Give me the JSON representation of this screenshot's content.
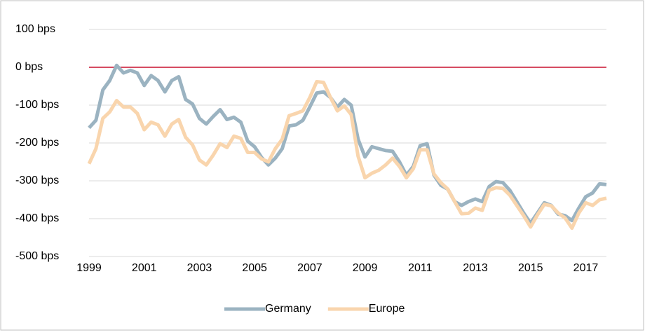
{
  "chart_data": {
    "type": "line",
    "x": [
      1999,
      1999.25,
      1999.5,
      1999.75,
      2000,
      2000.25,
      2000.5,
      2000.75,
      2001,
      2001.25,
      2001.5,
      2001.75,
      2002,
      2002.25,
      2002.5,
      2002.75,
      2003,
      2003.25,
      2003.5,
      2003.75,
      2004,
      2004.25,
      2004.5,
      2004.75,
      2005,
      2005.25,
      2005.5,
      2005.75,
      2006,
      2006.25,
      2006.5,
      2006.75,
      2007,
      2007.25,
      2007.5,
      2007.75,
      2008,
      2008.25,
      2008.5,
      2008.75,
      2009,
      2009.25,
      2009.5,
      2009.75,
      2010,
      2010.25,
      2010.5,
      2010.75,
      2011,
      2011.25,
      2011.5,
      2011.75,
      2012,
      2012.25,
      2012.5,
      2012.75,
      2013,
      2013.25,
      2013.5,
      2013.75,
      2014,
      2014.25,
      2014.5,
      2014.75,
      2015,
      2015.25,
      2015.5,
      2015.75,
      2016,
      2016.25,
      2016.5,
      2016.75,
      2017,
      2017.25,
      2017.5,
      2017.75
    ],
    "series": [
      {
        "name": "Germany",
        "color": "#9bb3c1",
        "values": [
          -160,
          -140,
          -60,
          -35,
          5,
          -15,
          -8,
          -15,
          -48,
          -22,
          -35,
          -65,
          -35,
          -25,
          -85,
          -97,
          -135,
          -150,
          -130,
          -112,
          -138,
          -132,
          -145,
          -195,
          -210,
          -238,
          -258,
          -240,
          -215,
          -155,
          -152,
          -140,
          -105,
          -68,
          -65,
          -80,
          -105,
          -85,
          -100,
          -190,
          -237,
          -210,
          -215,
          -220,
          -222,
          -250,
          -285,
          -262,
          -207,
          -202,
          -285,
          -312,
          -322,
          -355,
          -365,
          -355,
          -348,
          -355,
          -315,
          -302,
          -305,
          -325,
          -355,
          -385,
          -412,
          -385,
          -358,
          -365,
          -388,
          -392,
          -405,
          -372,
          -342,
          -332,
          -308,
          -310
        ]
      },
      {
        "name": "Europe",
        "color": "#f9d5ad",
        "values": [
          -255,
          -215,
          -135,
          -118,
          -88,
          -105,
          -105,
          -122,
          -165,
          -145,
          -152,
          -182,
          -150,
          -138,
          -185,
          -205,
          -245,
          -258,
          -232,
          -202,
          -212,
          -182,
          -188,
          -225,
          -225,
          -242,
          -250,
          -215,
          -190,
          -128,
          -122,
          -115,
          -80,
          -38,
          -40,
          -80,
          -115,
          -102,
          -125,
          -235,
          -292,
          -280,
          -272,
          -258,
          -240,
          -262,
          -292,
          -268,
          -218,
          -218,
          -282,
          -305,
          -322,
          -355,
          -387,
          -386,
          -372,
          -378,
          -325,
          -318,
          -320,
          -338,
          -365,
          -392,
          -422,
          -390,
          -362,
          -366,
          -385,
          -398,
          -425,
          -385,
          -358,
          -365,
          -350,
          -346
        ]
      }
    ],
    "xlim": [
      1999,
      2017.75
    ],
    "xticks": [
      1999,
      2001,
      2003,
      2005,
      2007,
      2009,
      2011,
      2013,
      2015,
      2017
    ],
    "ylim": [
      -500,
      100
    ],
    "yticks": [
      {
        "value": 100,
        "label": "100 bps"
      },
      {
        "value": 0,
        "label": "0 bps"
      },
      {
        "value": -100,
        "label": "-100 bps"
      },
      {
        "value": -200,
        "label": "-200 bps"
      },
      {
        "value": -300,
        "label": "-300 bps"
      },
      {
        "value": -400,
        "label": "-400 bps"
      },
      {
        "value": -500,
        "label": "-500 bps"
      }
    ],
    "grid": true,
    "reference_line": {
      "value": 0,
      "color": "#c8102e"
    },
    "legend": "bottom"
  }
}
